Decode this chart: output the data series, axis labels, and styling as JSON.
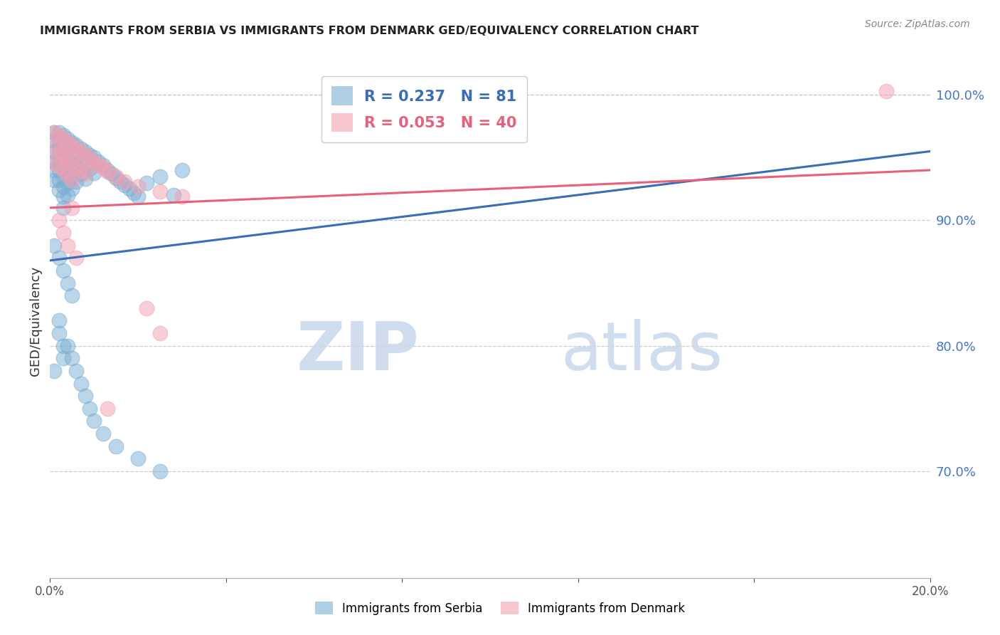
{
  "title": "IMMIGRANTS FROM SERBIA VS IMMIGRANTS FROM DENMARK GED/EQUIVALENCY CORRELATION CHART",
  "source": "Source: ZipAtlas.com",
  "ylabel": "GED/Equivalency",
  "right_ytick_labels": [
    "100.0%",
    "90.0%",
    "80.0%",
    "70.0%"
  ],
  "right_ytick_values": [
    1.0,
    0.9,
    0.8,
    0.7
  ],
  "serbia_R": 0.237,
  "serbia_N": 81,
  "denmark_R": 0.053,
  "denmark_N": 40,
  "serbia_color": "#7BAFD4",
  "denmark_color": "#F4A0B0",
  "serbia_line_color": "#3A6DB5",
  "denmark_line_color": "#E8607A",
  "background_color": "#FFFFFF",
  "xlim": [
    0.0,
    0.2
  ],
  "ylim": [
    0.615,
    1.025
  ],
  "serbia_line_x0": 0.0,
  "serbia_line_y0": 0.868,
  "serbia_line_x1": 0.2,
  "serbia_line_y1": 0.955,
  "denmark_line_x0": 0.0,
  "denmark_line_y0": 0.91,
  "denmark_line_x1": 0.2,
  "denmark_line_y1": 0.94,
  "serbia_pts_x": [
    0.001,
    0.001,
    0.001,
    0.001,
    0.001,
    0.001,
    0.002,
    0.002,
    0.002,
    0.002,
    0.002,
    0.002,
    0.002,
    0.003,
    0.003,
    0.003,
    0.003,
    0.003,
    0.003,
    0.003,
    0.003,
    0.004,
    0.004,
    0.004,
    0.004,
    0.004,
    0.004,
    0.005,
    0.005,
    0.005,
    0.005,
    0.005,
    0.006,
    0.006,
    0.006,
    0.006,
    0.007,
    0.007,
    0.007,
    0.008,
    0.008,
    0.008,
    0.009,
    0.009,
    0.01,
    0.01,
    0.011,
    0.012,
    0.013,
    0.014,
    0.015,
    0.016,
    0.017,
    0.018,
    0.019,
    0.02,
    0.022,
    0.025,
    0.028,
    0.03,
    0.001,
    0.002,
    0.003,
    0.004,
    0.005,
    0.001,
    0.002,
    0.002,
    0.003,
    0.003,
    0.004,
    0.005,
    0.006,
    0.007,
    0.008,
    0.009,
    0.01,
    0.012,
    0.015,
    0.02,
    0.025
  ],
  "serbia_pts_y": [
    0.97,
    0.963,
    0.955,
    0.947,
    0.94,
    0.932,
    0.97,
    0.963,
    0.956,
    0.948,
    0.94,
    0.932,
    0.924,
    0.968,
    0.96,
    0.952,
    0.944,
    0.935,
    0.927,
    0.919,
    0.91,
    0.965,
    0.957,
    0.948,
    0.939,
    0.93,
    0.92,
    0.962,
    0.953,
    0.944,
    0.935,
    0.925,
    0.96,
    0.951,
    0.941,
    0.931,
    0.957,
    0.947,
    0.937,
    0.955,
    0.944,
    0.933,
    0.952,
    0.941,
    0.95,
    0.938,
    0.947,
    0.944,
    0.94,
    0.937,
    0.934,
    0.931,
    0.928,
    0.925,
    0.922,
    0.919,
    0.93,
    0.935,
    0.92,
    0.94,
    0.88,
    0.87,
    0.86,
    0.85,
    0.84,
    0.78,
    0.82,
    0.81,
    0.8,
    0.79,
    0.8,
    0.79,
    0.78,
    0.77,
    0.76,
    0.75,
    0.74,
    0.73,
    0.72,
    0.71,
    0.7
  ],
  "denmark_pts_x": [
    0.001,
    0.001,
    0.001,
    0.002,
    0.002,
    0.002,
    0.003,
    0.003,
    0.003,
    0.004,
    0.004,
    0.004,
    0.005,
    0.005,
    0.005,
    0.006,
    0.006,
    0.007,
    0.007,
    0.008,
    0.008,
    0.009,
    0.01,
    0.011,
    0.012,
    0.013,
    0.015,
    0.017,
    0.02,
    0.025,
    0.03,
    0.002,
    0.003,
    0.004,
    0.005,
    0.006,
    0.013,
    0.022,
    0.025,
    0.19
  ],
  "denmark_pts_y": [
    0.97,
    0.958,
    0.946,
    0.968,
    0.955,
    0.943,
    0.965,
    0.952,
    0.94,
    0.962,
    0.949,
    0.936,
    0.96,
    0.946,
    0.932,
    0.957,
    0.943,
    0.955,
    0.94,
    0.952,
    0.937,
    0.949,
    0.947,
    0.944,
    0.942,
    0.939,
    0.935,
    0.931,
    0.927,
    0.923,
    0.919,
    0.9,
    0.89,
    0.88,
    0.91,
    0.87,
    0.75,
    0.83,
    0.81,
    1.003
  ]
}
